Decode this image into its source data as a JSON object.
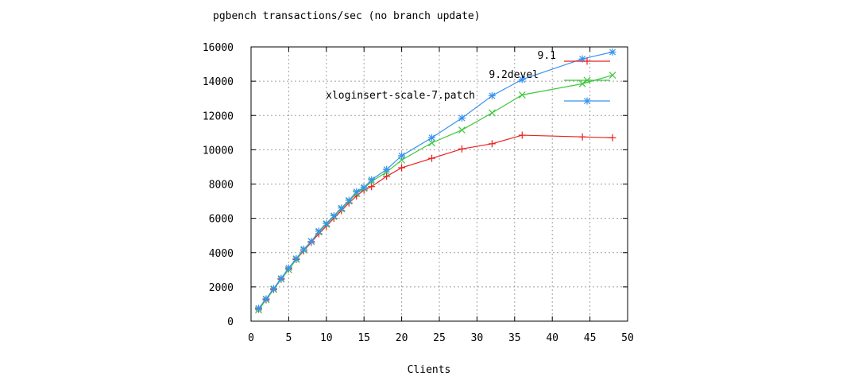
{
  "chart_data": {
    "type": "line",
    "title": "pgbench transactions/sec (no branch update)",
    "xlabel": "Clients",
    "ylabel": "",
    "xlim": [
      0,
      50
    ],
    "ylim": [
      0,
      16000
    ],
    "x_ticks": [
      "0",
      "5",
      "10",
      "15",
      "20",
      "25",
      "30",
      "35",
      "40",
      "45",
      "50"
    ],
    "y_ticks": [
      "0",
      "2000",
      "4000",
      "6000",
      "8000",
      "10000",
      "12000",
      "14000",
      "16000"
    ],
    "grid": true,
    "legend_position": "top-right",
    "series": [
      {
        "name": "9.1",
        "color": "#e8211f",
        "marker": "plus",
        "x": [
          1,
          2,
          3,
          4,
          5,
          6,
          7,
          8,
          9,
          10,
          11,
          12,
          13,
          14,
          15,
          16,
          18,
          20,
          24,
          28,
          32,
          36,
          44,
          48
        ],
        "y": [
          700,
          1250,
          1850,
          2450,
          3050,
          3600,
          4100,
          4600,
          5100,
          5550,
          6000,
          6450,
          6900,
          7300,
          7650,
          7850,
          8450,
          8950,
          9500,
          10050,
          10350,
          10850,
          10750,
          10700
        ]
      },
      {
        "name": "9.2devel",
        "color": "#3fc83c",
        "marker": "cross",
        "x": [
          1,
          2,
          3,
          4,
          5,
          6,
          7,
          8,
          9,
          10,
          11,
          12,
          13,
          14,
          15,
          16,
          18,
          20,
          24,
          28,
          32,
          36,
          44,
          48
        ],
        "y": [
          650,
          1250,
          1850,
          2450,
          3000,
          3600,
          4150,
          4650,
          5200,
          5650,
          6100,
          6550,
          7000,
          7450,
          7750,
          8150,
          8700,
          9400,
          10400,
          11150,
          12150,
          13200,
          13850,
          14350
        ]
      },
      {
        "name": "xloginsert-scale-7.patch",
        "color": "#3a92f0",
        "marker": "star",
        "x": [
          1,
          2,
          3,
          4,
          5,
          6,
          7,
          8,
          9,
          10,
          11,
          12,
          13,
          14,
          15,
          16,
          18,
          20,
          24,
          28,
          32,
          36,
          44,
          48
        ],
        "y": [
          750,
          1300,
          1900,
          2500,
          3100,
          3650,
          4200,
          4650,
          5250,
          5700,
          6150,
          6600,
          7050,
          7550,
          7800,
          8250,
          8850,
          9650,
          10700,
          11850,
          13150,
          14100,
          15300,
          15700
        ]
      }
    ]
  }
}
